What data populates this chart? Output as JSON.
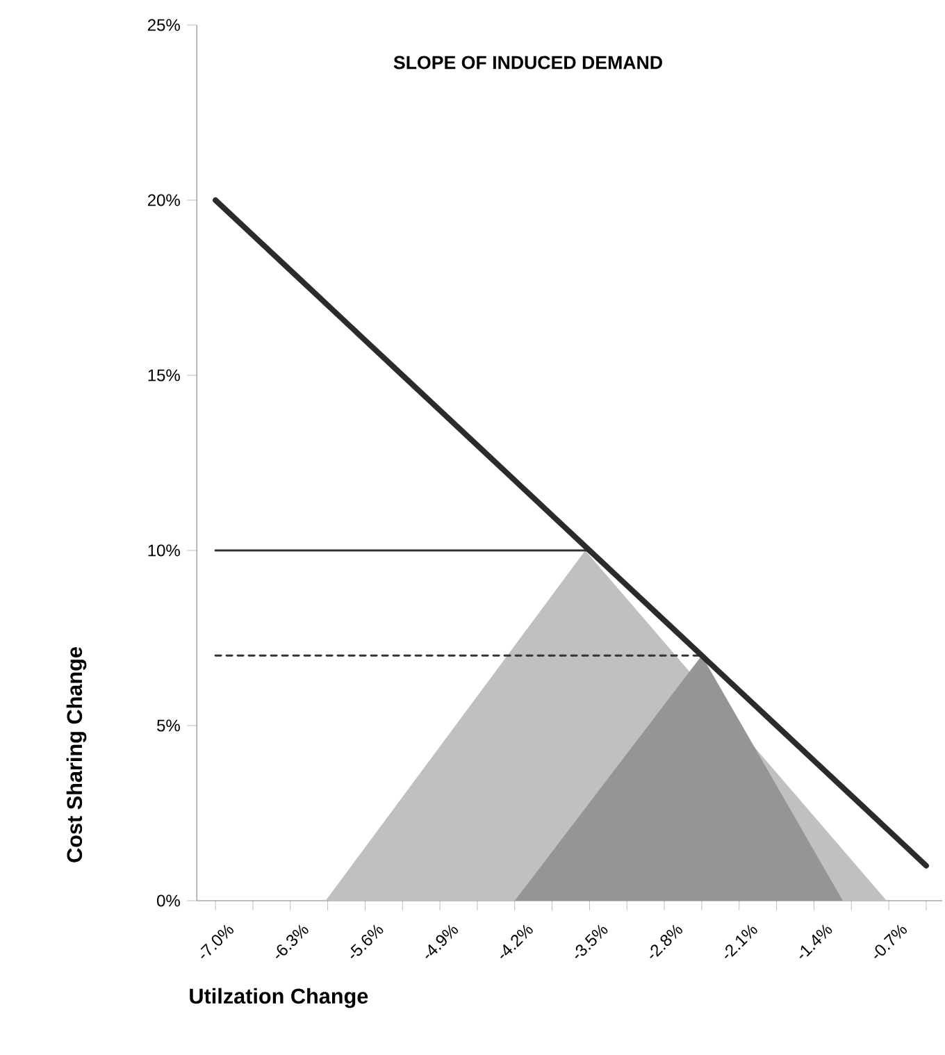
{
  "chart_data": {
    "type": "line",
    "title": "SLOPE OF INDUCED DEMAND",
    "xlabel": "Utilzation Change",
    "ylabel": "Cost Sharing Change",
    "xlim": [
      -7.175,
      -0.2
    ],
    "xticks": [
      {
        "value": -7.0,
        "label": "-7.0%"
      },
      {
        "value": -6.3,
        "label": "-6.3%"
      },
      {
        "value": -5.6,
        "label": "-5.6%"
      },
      {
        "value": -4.9,
        "label": "-4.9%"
      },
      {
        "value": -4.2,
        "label": "-4.2%"
      },
      {
        "value": -3.5,
        "label": "-3.5%"
      },
      {
        "value": -2.8,
        "label": "-2.8%"
      },
      {
        "value": -2.1,
        "label": "-2.1%"
      },
      {
        "value": -1.4,
        "label": "-1.4%"
      },
      {
        "value": -0.7,
        "label": "-0.7%"
      }
    ],
    "ylim": [
      0,
      25
    ],
    "yticks": [
      {
        "value": 0,
        "label": "0%"
      },
      {
        "value": 5,
        "label": "5%"
      },
      {
        "value": 10,
        "label": "10%"
      },
      {
        "value": 15,
        "label": "15%"
      },
      {
        "value": 20,
        "label": "20%"
      },
      {
        "value": 25,
        "label": "25%"
      }
    ],
    "series": [
      {
        "type": "area",
        "color": "#c0c0c0",
        "x": [
          -5.97,
          -3.54,
          -0.72
        ],
        "values": [
          0,
          10,
          0
        ]
      },
      {
        "type": "area",
        "color": "#959595",
        "x": [
          -4.2,
          -2.45,
          -1.13
        ],
        "values": [
          0,
          7,
          0
        ]
      },
      {
        "color": "#333333",
        "line_style": "solid",
        "x": [
          -7.0,
          -3.5
        ],
        "values": [
          10,
          10
        ]
      },
      {
        "color": "#333333",
        "line_style": "dashed",
        "x": [
          -7.0,
          -2.45
        ],
        "values": [
          7,
          7
        ]
      },
      {
        "color": "#2b2b2b",
        "line_style": "solid",
        "x": [
          -7.0,
          -6.65,
          -6.3,
          -5.95,
          -5.6,
          -5.25,
          -4.9,
          -4.55,
          -4.2,
          -3.85,
          -3.5,
          -3.15,
          -2.8,
          -2.45,
          -2.1,
          -1.75,
          -1.4,
          -1.05,
          -0.7,
          -0.35
        ],
        "values": [
          20,
          19,
          18,
          17,
          16,
          15,
          14,
          13,
          12,
          11,
          10,
          9,
          8,
          7,
          6,
          5,
          4,
          3,
          2,
          1
        ]
      }
    ]
  }
}
